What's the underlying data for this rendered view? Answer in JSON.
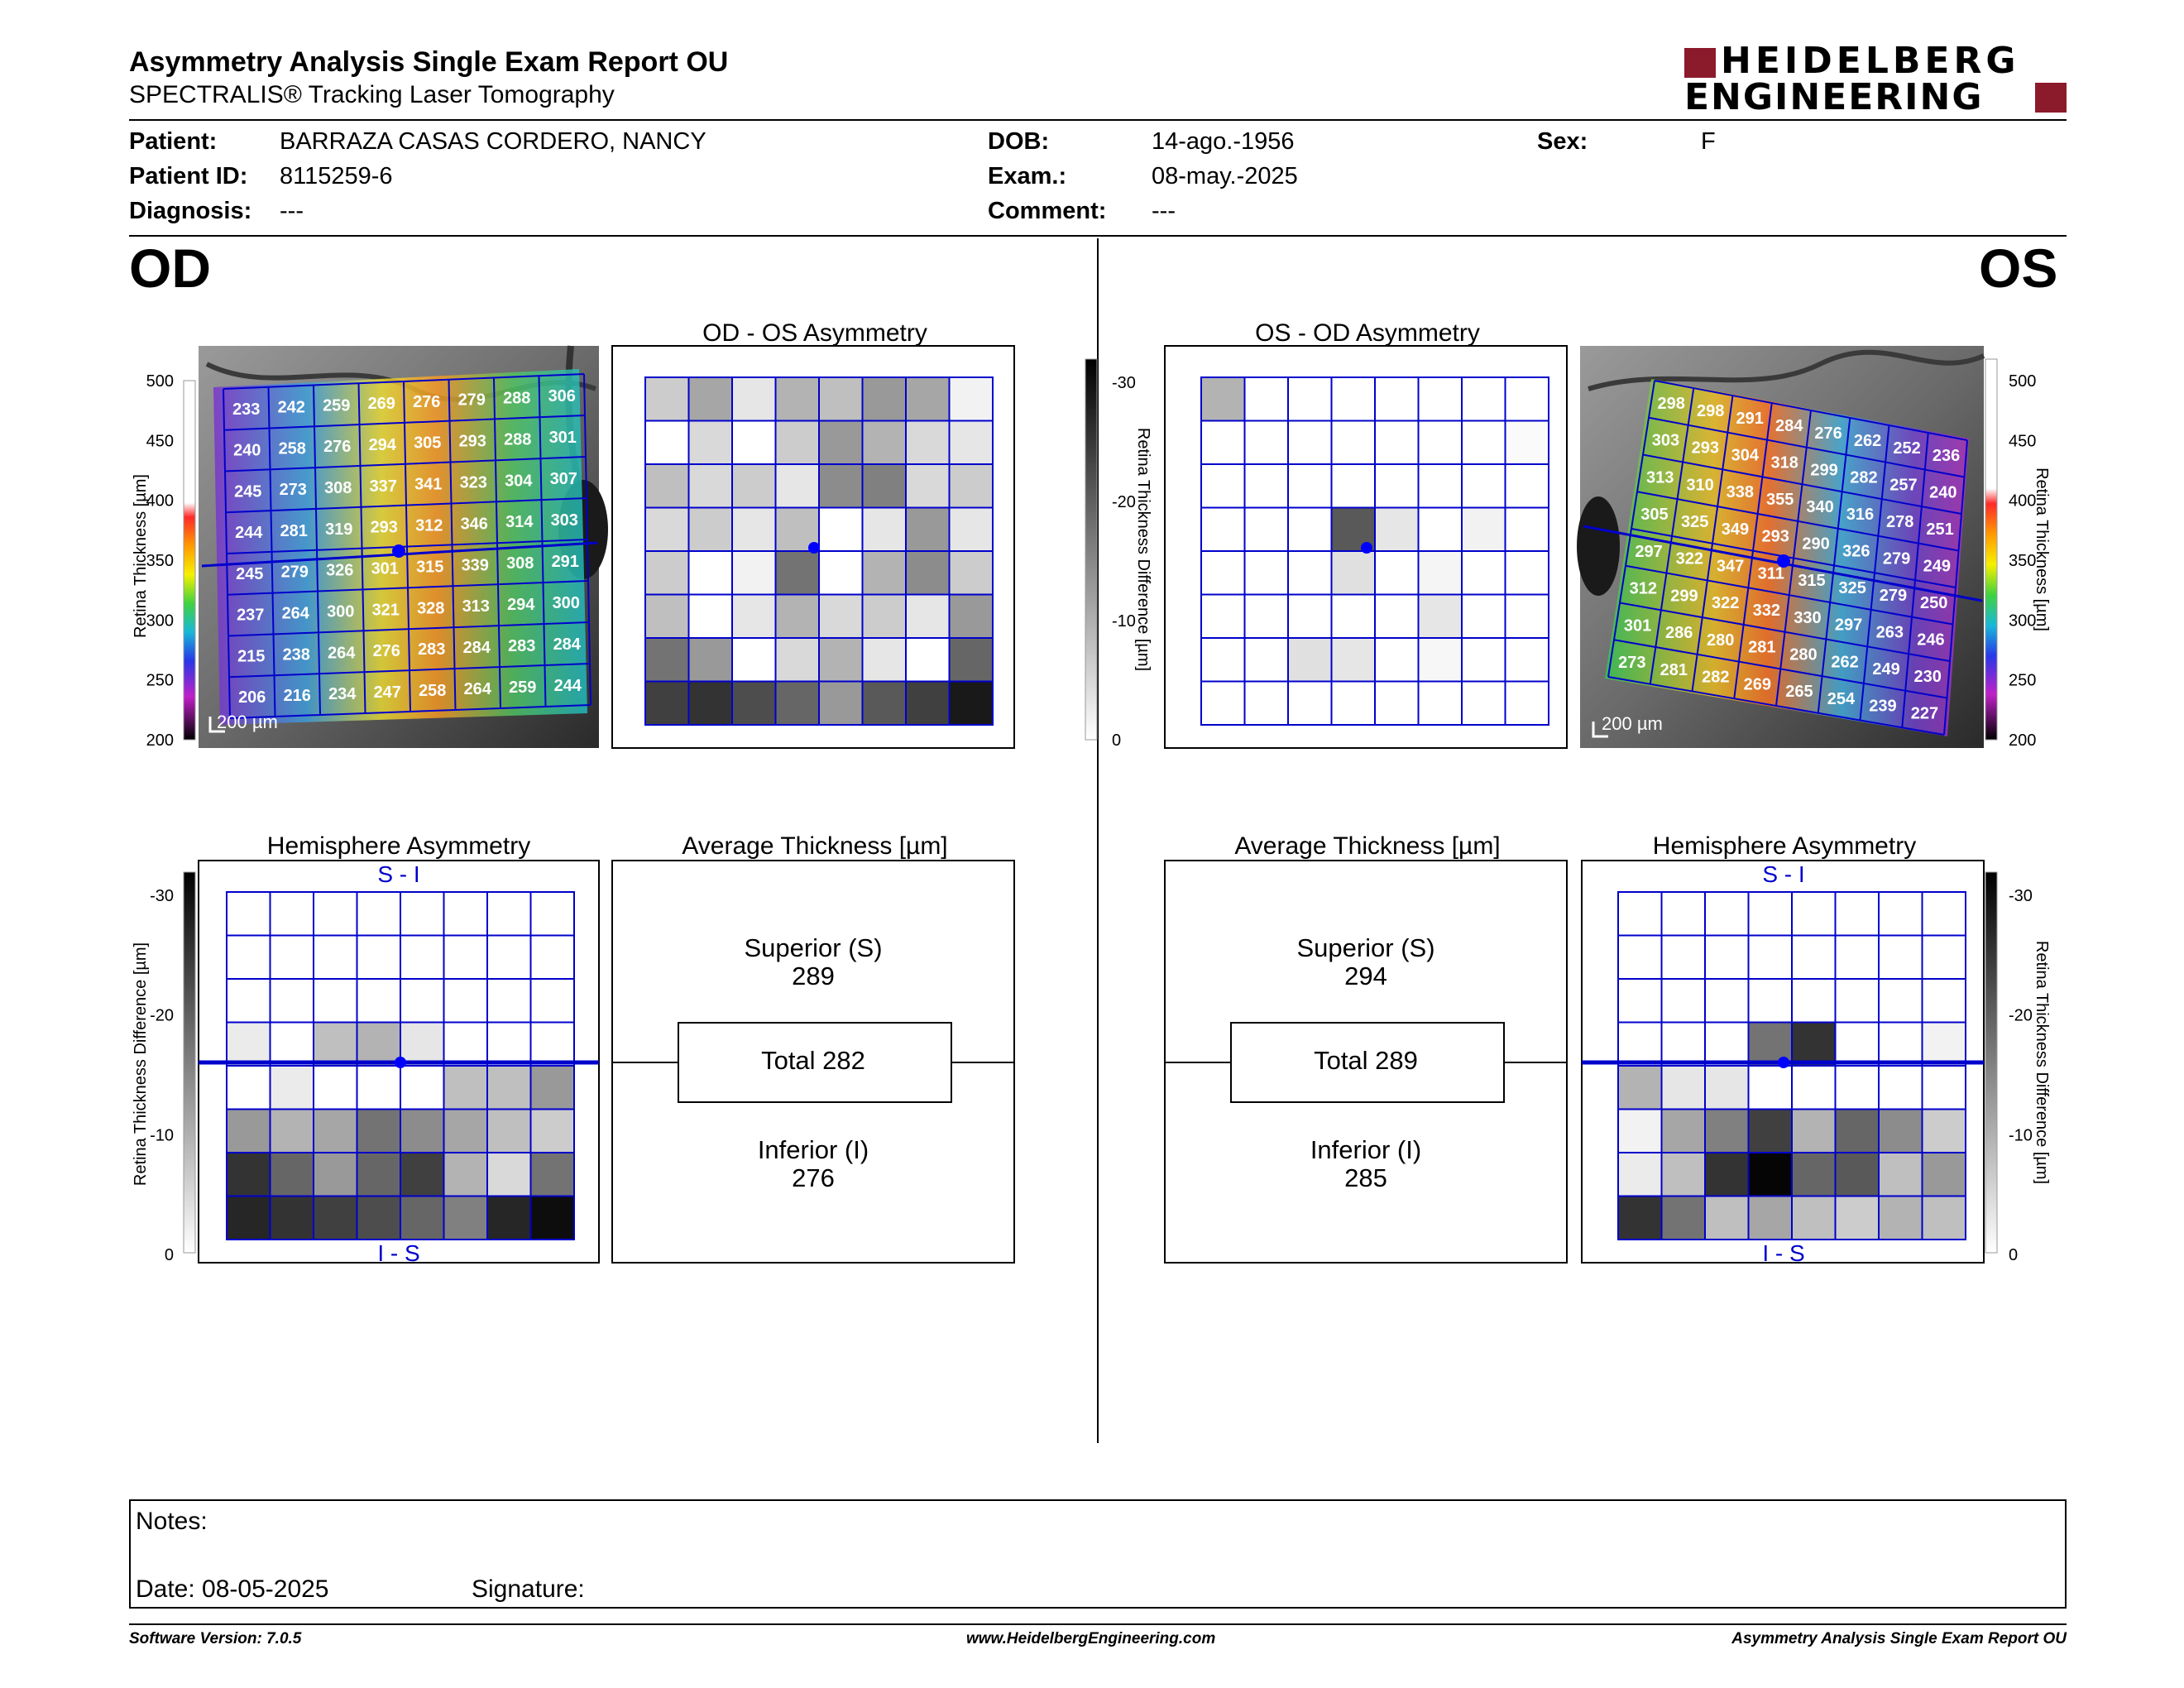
{
  "header": {
    "title": "Asymmetry Analysis Single Exam Report OU",
    "subtitle": "SPECTRALIS® Tracking Laser Tomography",
    "logo_line1": "HEIDELBERG",
    "logo_line2": "ENGINEERING",
    "logo_color": "#8b1a2b"
  },
  "patient": {
    "patient_label": "Patient:",
    "patient_value": "BARRAZA CASAS CORDERO, NANCY",
    "id_label": "Patient ID:",
    "id_value": "8115259-6",
    "diag_label": "Diagnosis:",
    "diag_value": "---",
    "dob_label": "DOB:",
    "dob_value": "14-ago.-1956",
    "exam_label": "Exam.:",
    "exam_value": "08-may.-2025",
    "comment_label": "Comment:",
    "comment_value": "---",
    "sex_label": "Sex:",
    "sex_value": "F"
  },
  "od": {
    "eye_label": "OD",
    "asym_title": "OD - OS Asymmetry",
    "hemi_title": "Hemisphere Asymmetry",
    "avg_title": "Average Thickness [µm]",
    "superior_label": "Superior (S)",
    "superior_value": "289",
    "total_label": "Total 282",
    "inferior_label": "Inferior (I)",
    "inferior_value": "276",
    "scale_label": "200 µm",
    "hemi_top": "S - I",
    "hemi_bottom": "I - S",
    "thickness": [
      [
        233,
        242,
        259,
        269,
        276,
        279,
        288,
        306
      ],
      [
        240,
        258,
        276,
        294,
        305,
        293,
        288,
        301
      ],
      [
        245,
        273,
        308,
        337,
        341,
        323,
        304,
        307
      ],
      [
        244,
        281,
        319,
        293,
        312,
        346,
        314,
        303
      ],
      [
        245,
        279,
        326,
        301,
        315,
        339,
        308,
        291
      ],
      [
        237,
        264,
        300,
        321,
        328,
        313,
        294,
        300
      ],
      [
        215,
        238,
        264,
        276,
        283,
        284,
        283,
        284
      ],
      [
        206,
        216,
        234,
        247,
        258,
        264,
        259,
        244
      ]
    ],
    "asym_gray": [
      [
        0.2,
        0.35,
        0.1,
        0.3,
        0.25,
        0.4,
        0.35,
        0.05
      ],
      [
        0.0,
        0.15,
        0.0,
        0.2,
        0.4,
        0.3,
        0.15,
        0.1
      ],
      [
        0.25,
        0.15,
        0.2,
        0.1,
        0.45,
        0.5,
        0.15,
        0.2
      ],
      [
        0.15,
        0.2,
        0.1,
        0.25,
        0.0,
        0.1,
        0.4,
        0.1
      ],
      [
        0.2,
        0.0,
        0.05,
        0.55,
        0.0,
        0.3,
        0.45,
        0.2
      ],
      [
        0.25,
        0.0,
        0.1,
        0.3,
        0.15,
        0.2,
        0.1,
        0.4
      ],
      [
        0.55,
        0.4,
        0.0,
        0.15,
        0.3,
        0.1,
        0.0,
        0.6
      ],
      [
        0.75,
        0.8,
        0.7,
        0.6,
        0.4,
        0.65,
        0.75,
        0.9
      ]
    ],
    "hemi_gray": [
      [
        0,
        0,
        0,
        0,
        0,
        0,
        0,
        0
      ],
      [
        0,
        0,
        0,
        0,
        0,
        0,
        0,
        0
      ],
      [
        0,
        0,
        0,
        0,
        0,
        0,
        0,
        0
      ],
      [
        0.08,
        0,
        0.25,
        0.3,
        0.1,
        0,
        0,
        0
      ],
      [
        0,
        0.08,
        0,
        0,
        0,
        0.25,
        0.25,
        0.4
      ],
      [
        0.4,
        0.3,
        0.35,
        0.55,
        0.45,
        0.35,
        0.25,
        0.2
      ],
      [
        0.8,
        0.6,
        0.4,
        0.6,
        0.75,
        0.3,
        0.15,
        0.55
      ],
      [
        0.85,
        0.8,
        0.75,
        0.7,
        0.6,
        0.5,
        0.85,
        0.95
      ]
    ]
  },
  "os": {
    "eye_label": "OS",
    "asym_title": "OS - OD Asymmetry",
    "hemi_title": "Hemisphere Asymmetry",
    "avg_title": "Average Thickness [µm]",
    "superior_label": "Superior (S)",
    "superior_value": "294",
    "total_label": "Total 289",
    "inferior_label": "Inferior (I)",
    "inferior_value": "285",
    "scale_label": "200 µm",
    "hemi_top": "S - I",
    "hemi_bottom": "I - S",
    "thickness": [
      [
        298,
        298,
        291,
        284,
        276,
        262,
        252,
        236
      ],
      [
        303,
        293,
        304,
        318,
        299,
        282,
        257,
        240
      ],
      [
        313,
        310,
        338,
        355,
        340,
        316,
        278,
        251
      ],
      [
        305,
        325,
        349,
        293,
        290,
        326,
        279,
        249
      ],
      [
        297,
        322,
        347,
        311,
        315,
        325,
        279,
        250
      ],
      [
        312,
        299,
        322,
        332,
        330,
        297,
        263,
        246
      ],
      [
        301,
        286,
        280,
        281,
        280,
        262,
        249,
        230
      ],
      [
        273,
        281,
        282,
        269,
        265,
        254,
        239,
        227
      ]
    ],
    "asym_gray": [
      [
        0.3,
        0,
        0,
        0,
        0,
        0,
        0,
        0
      ],
      [
        0,
        0,
        0,
        0,
        0,
        0,
        0,
        0.02
      ],
      [
        0,
        0,
        0,
        0,
        0,
        0,
        0,
        0
      ],
      [
        0,
        0,
        0,
        0.65,
        0.1,
        0,
        0.05,
        0
      ],
      [
        0,
        0,
        0,
        0.12,
        0,
        0.04,
        0,
        0
      ],
      [
        0,
        0,
        0,
        0,
        0,
        0.1,
        0,
        0
      ],
      [
        0,
        0,
        0.12,
        0.1,
        0,
        0.03,
        0,
        0
      ],
      [
        0,
        0,
        0,
        0,
        0,
        0,
        0,
        0
      ]
    ],
    "hemi_gray": [
      [
        0,
        0,
        0,
        0,
        0,
        0,
        0,
        0
      ],
      [
        0,
        0,
        0,
        0,
        0,
        0,
        0,
        0
      ],
      [
        0,
        0,
        0,
        0,
        0,
        0,
        0,
        0
      ],
      [
        0,
        0,
        0,
        0.55,
        0.8,
        0,
        0,
        0.05
      ],
      [
        0.3,
        0.1,
        0.1,
        0,
        0,
        0,
        0,
        0
      ],
      [
        0.05,
        0.35,
        0.5,
        0.75,
        0.3,
        0.6,
        0.45,
        0.2
      ],
      [
        0.08,
        0.25,
        0.8,
        0.98,
        0.6,
        0.65,
        0.25,
        0.4
      ],
      [
        0.8,
        0.55,
        0.25,
        0.35,
        0.25,
        0.2,
        0.3,
        0.25
      ]
    ]
  },
  "thickness_scale": {
    "label": "Retina Thickness [µm]",
    "ticks": [
      "500",
      "450",
      "400",
      "350",
      "300",
      "250",
      "200"
    ]
  },
  "diff_scale": {
    "label": "Retina Thickness Difference [µm]",
    "ticks": [
      "-30",
      "-20",
      "-10",
      "0"
    ]
  },
  "grid_color": "#0000cc",
  "notes": {
    "notes_label": "Notes:",
    "date_label": "Date: 08-05-2025",
    "signature_label": "Signature:"
  },
  "footer": {
    "left": "Software Version: 7.0.5",
    "center": "www.HeidelbergEngineering.com",
    "right": "Asymmetry Analysis Single Exam Report OU"
  }
}
